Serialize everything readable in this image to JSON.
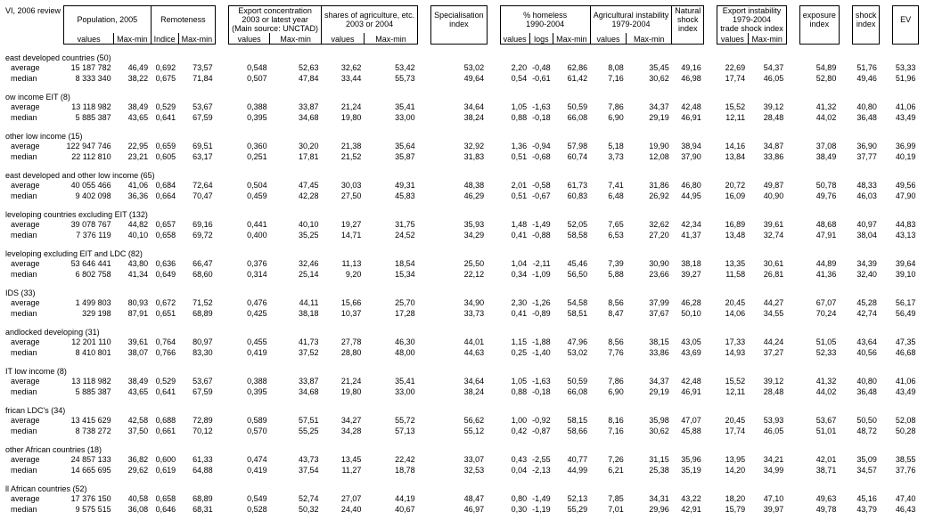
{
  "title": "VI, 2006 review",
  "columnGroups": [
    {
      "key": "g0",
      "label": "Population, 2005",
      "subs": [
        {
          "k": "c0",
          "l": "values"
        },
        {
          "k": "c1",
          "l": "Max-min"
        }
      ]
    },
    {
      "key": "g1",
      "label": "Remoteness",
      "subs": [
        {
          "k": "c2",
          "l": "Indice"
        },
        {
          "k": "c3",
          "l": "Max-min"
        }
      ]
    },
    {
      "key": "g2",
      "label": "Export concentration\n2003 or latest year\n(Main source: UNCTAD)",
      "subs": [
        {
          "k": "c4",
          "l": "values"
        },
        {
          "k": "c5",
          "l": "Max-min"
        }
      ]
    },
    {
      "key": "g3",
      "label": "shares of agriculture, etc.\n2003 or 2004",
      "subs": [
        {
          "k": "c6",
          "l": "values"
        },
        {
          "k": "c7",
          "l": "Max-min"
        }
      ]
    },
    {
      "key": "g4",
      "label": "Specialisation\nindex",
      "subs": [
        {
          "k": "c8",
          "l": ""
        }
      ]
    },
    {
      "key": "g5",
      "label": "% homeless\n1990-2004",
      "subs": [
        {
          "k": "c9",
          "l": "values"
        },
        {
          "k": "c10",
          "l": "logs"
        },
        {
          "k": "c11",
          "l": "Max-min"
        }
      ]
    },
    {
      "key": "g6",
      "label": "Agricultural instability\n1979-2004",
      "subs": [
        {
          "k": "c12",
          "l": "values"
        },
        {
          "k": "c13",
          "l": "Max-min"
        }
      ]
    },
    {
      "key": "g7",
      "label": "Natural\nshock\nindex",
      "subs": [
        {
          "k": "c14",
          "l": ""
        }
      ]
    },
    {
      "key": "g8",
      "label": "Export instability\n1979-2004\ntrade shock index",
      "subs": [
        {
          "k": "c15",
          "l": "values"
        },
        {
          "k": "c16",
          "l": "Max-min"
        }
      ]
    },
    {
      "key": "g9",
      "label": "exposure\nindex",
      "subs": [
        {
          "k": "c17",
          "l": ""
        }
      ]
    },
    {
      "key": "g10",
      "label": "shock\nindex",
      "subs": [
        {
          "k": "c18",
          "l": ""
        }
      ]
    },
    {
      "key": "g11",
      "label": "EV",
      "subs": [
        {
          "k": "c19",
          "l": ""
        }
      ]
    }
  ],
  "sections": [
    {
      "name": "east developed countries (50)",
      "rows": [
        {
          "l": "average",
          "v": [
            "15 187 782",
            "46,49",
            "0,692",
            "73,57",
            "0,548",
            "52,63",
            "32,62",
            "53,42",
            "53,02",
            "2,20",
            "-0,48",
            "62,86",
            "8,08",
            "35,45",
            "49,16",
            "22,69",
            "54,37",
            "54,89",
            "51,76",
            "53,33"
          ]
        },
        {
          "l": "median",
          "v": [
            "8 333 340",
            "38,22",
            "0,675",
            "71,84",
            "0,507",
            "47,84",
            "33,44",
            "55,73",
            "49,64",
            "0,54",
            "-0,61",
            "61,42",
            "7,16",
            "30,62",
            "46,98",
            "17,74",
            "46,05",
            "52,80",
            "49,46",
            "51,96"
          ]
        }
      ]
    },
    {
      "name": "ow income EIT (8)",
      "rows": [
        {
          "l": "average",
          "v": [
            "13 118 982",
            "38,49",
            "0,529",
            "53,67",
            "0,388",
            "33,87",
            "21,24",
            "35,41",
            "34,64",
            "1,05",
            "-1,63",
            "50,59",
            "7,86",
            "34,37",
            "42,48",
            "15,52",
            "39,12",
            "41,32",
            "40,80",
            "41,06"
          ]
        },
        {
          "l": "median",
          "v": [
            "5 885 387",
            "43,65",
            "0,641",
            "67,59",
            "0,395",
            "34,68",
            "19,80",
            "33,00",
            "38,24",
            "0,88",
            "-0,18",
            "66,08",
            "6,90",
            "29,19",
            "46,91",
            "12,11",
            "28,48",
            "44,02",
            "36,48",
            "43,49"
          ]
        }
      ]
    },
    {
      "name": "other low income (15)",
      "rows": [
        {
          "l": "average",
          "v": [
            "122 947 746",
            "22,95",
            "0,659",
            "69,51",
            "0,360",
            "30,20",
            "21,38",
            "35,64",
            "32,92",
            "1,36",
            "-0,94",
            "57,98",
            "5,18",
            "19,90",
            "38,94",
            "14,16",
            "34,87",
            "37,08",
            "36,90",
            "36,99"
          ]
        },
        {
          "l": "median",
          "v": [
            "22 112 810",
            "23,21",
            "0,605",
            "63,17",
            "0,251",
            "17,81",
            "21,52",
            "35,87",
            "31,83",
            "0,51",
            "-0,68",
            "60,74",
            "3,73",
            "12,08",
            "37,90",
            "13,84",
            "33,86",
            "38,49",
            "37,77",
            "40,19"
          ]
        }
      ]
    },
    {
      "name": "east developed and other low income (65)",
      "rows": [
        {
          "l": "average",
          "v": [
            "40 055 466",
            "41,06",
            "0,684",
            "72,64",
            "0,504",
            "47,45",
            "30,03",
            "49,31",
            "48,38",
            "2,01",
            "-0,58",
            "61,73",
            "7,41",
            "31,86",
            "46,80",
            "20,72",
            "49,87",
            "50,78",
            "48,33",
            "49,56"
          ]
        },
        {
          "l": "median",
          "v": [
            "9 402 098",
            "36,36",
            "0,664",
            "70,47",
            "0,459",
            "42,28",
            "27,50",
            "45,83",
            "46,29",
            "0,51",
            "-0,67",
            "60,83",
            "6,48",
            "26,92",
            "44,95",
            "16,09",
            "40,90",
            "49,76",
            "46,03",
            "47,90"
          ]
        }
      ]
    },
    {
      "name": "leveloping countries excluding EIT (132)",
      "rows": [
        {
          "l": "average",
          "v": [
            "39 078 767",
            "44,82",
            "0,657",
            "69,16",
            "0,441",
            "40,10",
            "19,27",
            "31,75",
            "35,93",
            "1,48",
            "-1,49",
            "52,05",
            "7,65",
            "32,62",
            "42,34",
            "16,89",
            "39,61",
            "48,68",
            "40,97",
            "44,83"
          ]
        },
        {
          "l": "median",
          "v": [
            "7 376 119",
            "40,10",
            "0,658",
            "69,72",
            "0,400",
            "35,25",
            "14,71",
            "24,52",
            "34,29",
            "0,41",
            "-0,88",
            "58,58",
            "6,53",
            "27,20",
            "41,37",
            "13,48",
            "32,74",
            "47,91",
            "38,04",
            "43,13"
          ]
        }
      ]
    },
    {
      "name": "leveloping excluding EIT and LDC (82)",
      "rows": [
        {
          "l": "average",
          "v": [
            "53 646 441",
            "43,80",
            "0,636",
            "66,47",
            "0,376",
            "32,46",
            "11,13",
            "18,54",
            "25,50",
            "1,04",
            "-2,11",
            "45,46",
            "7,39",
            "30,90",
            "38,18",
            "13,35",
            "30,61",
            "44,89",
            "34,39",
            "39,64"
          ]
        },
        {
          "l": "median",
          "v": [
            "6 802 758",
            "41,34",
            "0,649",
            "68,60",
            "0,314",
            "25,14",
            "9,20",
            "15,34",
            "22,12",
            "0,34",
            "-1,09",
            "56,50",
            "5,88",
            "23,66",
            "39,27",
            "11,58",
            "26,81",
            "41,36",
            "32,40",
            "39,10"
          ]
        }
      ]
    },
    {
      "name": "IDS (33)",
      "rows": [
        {
          "l": "average",
          "v": [
            "1 499 803",
            "80,93",
            "0,672",
            "71,52",
            "0,476",
            "44,11",
            "15,66",
            "25,70",
            "34,90",
            "2,30",
            "-1,26",
            "54,58",
            "8,56",
            "37,99",
            "46,28",
            "20,45",
            "44,27",
            "67,07",
            "45,28",
            "56,17"
          ]
        },
        {
          "l": "median",
          "v": [
            "329 198",
            "87,91",
            "0,651",
            "68,89",
            "0,425",
            "38,18",
            "10,37",
            "17,28",
            "33,73",
            "0,41",
            "-0,89",
            "58,51",
            "8,47",
            "37,67",
            "50,10",
            "14,06",
            "34,55",
            "70,24",
            "42,74",
            "56,49"
          ]
        }
      ]
    },
    {
      "name": "andlocked developing (31)",
      "rows": [
        {
          "l": "average",
          "v": [
            "12 201 110",
            "39,61",
            "0,764",
            "80,97",
            "0,455",
            "41,73",
            "27,78",
            "46,30",
            "44,01",
            "1,15",
            "-1,88",
            "47,96",
            "8,56",
            "38,15",
            "43,05",
            "17,33",
            "44,24",
            "51,05",
            "43,64",
            "47,35"
          ]
        },
        {
          "l": "median",
          "v": [
            "8 410 801",
            "38,07",
            "0,766",
            "83,30",
            "0,419",
            "37,52",
            "28,80",
            "48,00",
            "44,63",
            "0,25",
            "-1,40",
            "53,02",
            "7,76",
            "33,86",
            "43,69",
            "14,93",
            "37,27",
            "52,33",
            "40,56",
            "46,68"
          ]
        }
      ]
    },
    {
      "name": "IT low income (8)",
      "rows": [
        {
          "l": "average",
          "v": [
            "13 118 982",
            "38,49",
            "0,529",
            "53,67",
            "0,388",
            "33,87",
            "21,24",
            "35,41",
            "34,64",
            "1,05",
            "-1,63",
            "50,59",
            "7,86",
            "34,37",
            "42,48",
            "15,52",
            "39,12",
            "41,32",
            "40,80",
            "41,06"
          ]
        },
        {
          "l": "median",
          "v": [
            "5 885 387",
            "43,65",
            "0,641",
            "67,59",
            "0,395",
            "34,68",
            "19,80",
            "33,00",
            "38,24",
            "0,88",
            "-0,18",
            "66,08",
            "6,90",
            "29,19",
            "46,91",
            "12,11",
            "28,48",
            "44,02",
            "36,48",
            "43,49"
          ]
        }
      ]
    },
    {
      "name": "frican LDC's (34)",
      "rows": [
        {
          "l": "average",
          "v": [
            "13 415 629",
            "42,58",
            "0,688",
            "72,89",
            "0,589",
            "57,51",
            "34,27",
            "55,72",
            "56,62",
            "1,00",
            "-0,92",
            "58,15",
            "8,16",
            "35,98",
            "47,07",
            "20,45",
            "53,93",
            "53,67",
            "50,50",
            "52,08"
          ]
        },
        {
          "l": "median",
          "v": [
            "8 738 272",
            "37,50",
            "0,661",
            "70,12",
            "0,570",
            "55,25",
            "34,28",
            "57,13",
            "55,12",
            "0,42",
            "-0,87",
            "58,66",
            "7,16",
            "30,62",
            "45,88",
            "17,74",
            "46,05",
            "51,01",
            "48,72",
            "50,28"
          ]
        }
      ]
    },
    {
      "name": "other African countries (18)",
      "rows": [
        {
          "l": "average",
          "v": [
            "24 857 133",
            "36,82",
            "0,600",
            "61,33",
            "0,474",
            "43,73",
            "13,45",
            "22,42",
            "33,07",
            "0,43",
            "-2,55",
            "40,77",
            "7,26",
            "31,15",
            "35,96",
            "13,95",
            "34,21",
            "42,01",
            "35,09",
            "38,55"
          ]
        },
        {
          "l": "median",
          "v": [
            "14 665 695",
            "29,62",
            "0,619",
            "64,88",
            "0,419",
            "37,54",
            "11,27",
            "18,78",
            "32,53",
            "0,04",
            "-2,13",
            "44,99",
            "6,21",
            "25,38",
            "35,19",
            "14,20",
            "34,99",
            "38,71",
            "34,57",
            "37,76"
          ]
        }
      ]
    },
    {
      "name": "ll African countries (52)",
      "rows": [
        {
          "l": "average",
          "v": [
            "17 376 150",
            "40,58",
            "0,658",
            "68,89",
            "0,549",
            "52,74",
            "27,07",
            "44,19",
            "48,47",
            "0,80",
            "-1,49",
            "52,13",
            "7,85",
            "34,31",
            "43,22",
            "18,20",
            "47,10",
            "49,63",
            "45,16",
            "47,40"
          ]
        },
        {
          "l": "median",
          "v": [
            "9 575 515",
            "36,08",
            "0,646",
            "68,31",
            "0,528",
            "50,32",
            "24,40",
            "40,67",
            "46,97",
            "0,30",
            "-1,19",
            "55,29",
            "7,01",
            "29,96",
            "42,91",
            "15,79",
            "39,97",
            "49,78",
            "43,79",
            "46,43"
          ]
        }
      ]
    }
  ]
}
